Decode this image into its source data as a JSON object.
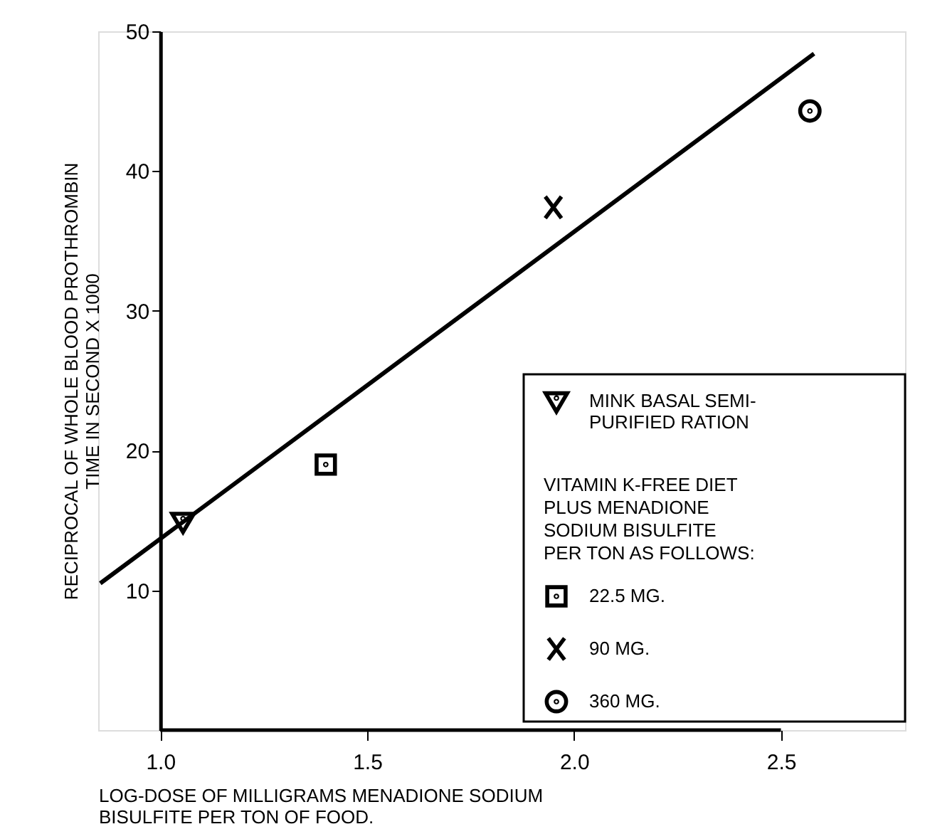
{
  "chart_data": {
    "type": "scatter",
    "xlabel": "LOG-DOSE OF MILLIGRAMS MENADIONE SODIUM BISULFITE PER TON OF FOOD.",
    "ylabel": "RECIPROCAL OF WHOLE BLOOD PROTHROMBIN TIME IN SECOND X 1000",
    "legend_title": "VITAMIN K-FREE DIET PLUS MENADIONE SODIUM BISULFITE PER TON AS FOLLOWS:",
    "xlim": [
      0.85,
      2.8
    ],
    "ylim": [
      0,
      50
    ],
    "xticks": [
      {
        "value": 1,
        "label": "1.0"
      },
      1.5,
      {
        "value": 2,
        "label": "2.0"
      },
      2.5
    ],
    "yticks": [
      10,
      20,
      30,
      40,
      50
    ],
    "grid": false,
    "legend": "bottom right",
    "series": [
      {
        "name": "MINK BASAL SEMI-PURIFIED RATION",
        "type": "scatter",
        "marker": "triangle",
        "color": "#000000",
        "x": [
          1.055
        ],
        "values": [
          14.9
        ]
      },
      {
        "name": "22.5 MG.",
        "type": "scatter",
        "marker": "square",
        "color": "#000000",
        "x": [
          1.4
        ],
        "values": [
          19.0
        ]
      },
      {
        "name": "90 MG.",
        "type": "scatter",
        "marker": "cross",
        "color": "#000000",
        "x": [
          1.95
        ],
        "values": [
          37.4
        ]
      },
      {
        "name": "360 MG.",
        "type": "scatter",
        "marker": "circle",
        "color": "#000000",
        "x": [
          2.57
        ],
        "values": [
          44.3
        ]
      },
      {
        "type": "line",
        "line_style": "solid",
        "color": "#000000",
        "x": [
          0.855,
          2.58
        ],
        "values": [
          10.5,
          48.4
        ]
      }
    ]
  }
}
